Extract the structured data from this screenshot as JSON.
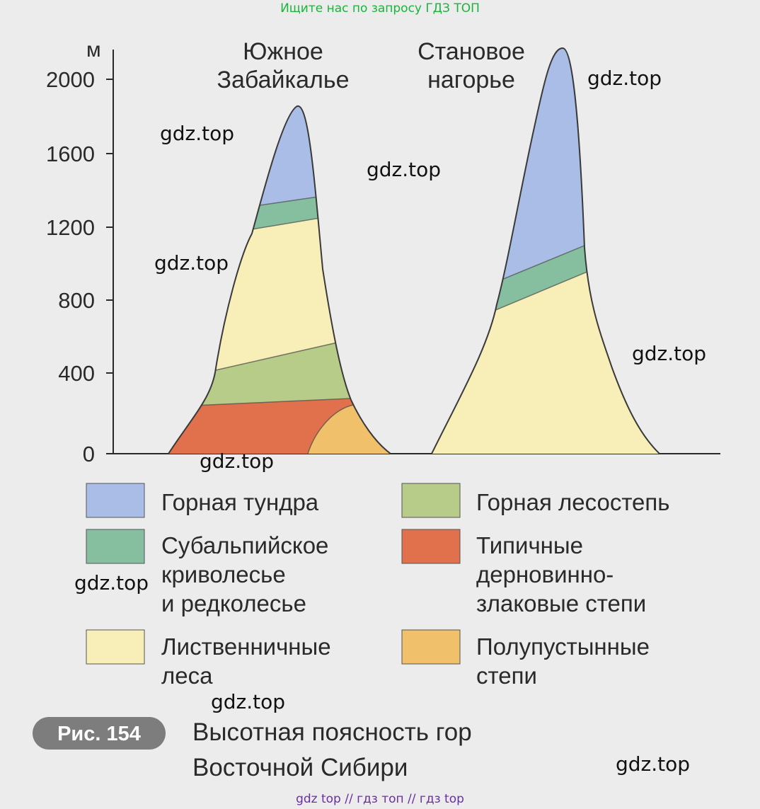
{
  "banner_top": "Ищите нас по запросу ГДЗ ТОП",
  "banner_bottom": "gdz top  //  гдз топ  //  гдз top",
  "axis": {
    "unit": "м",
    "ticks": [
      "0",
      "400",
      "800",
      "1200",
      "1600",
      "2000"
    ]
  },
  "mountains": [
    {
      "title_line1": "Южное",
      "title_line2": "Забайкалье",
      "peak_height_m": 1880
    },
    {
      "title_line1": "Становое",
      "title_line2": "нагорье",
      "peak_height_m": 2200
    }
  ],
  "legend": [
    {
      "lines": [
        "Горная тундра"
      ],
      "color": "#a9bde6"
    },
    {
      "lines": [
        "Горная лесостепь"
      ],
      "color": "#b8cc8a"
    },
    {
      "lines": [
        "Субальпийское",
        "криволесье",
        "и редколесье"
      ],
      "color": "#86bf9f"
    },
    {
      "lines": [
        "Типичные",
        "дерновинно-",
        "злаковые степи"
      ],
      "color": "#e0714c"
    },
    {
      "lines": [
        "Лиственничные",
        "леса"
      ],
      "color": "#f8efb8"
    },
    {
      "lines": [
        "Полупустынные",
        "степи"
      ],
      "color": "#f0c06a"
    }
  ],
  "caption": {
    "badge": "Рис. 154",
    "line1": "Высотная поясность гор",
    "line2": "Восточной Сибири"
  },
  "watermark": "gdz.top"
}
